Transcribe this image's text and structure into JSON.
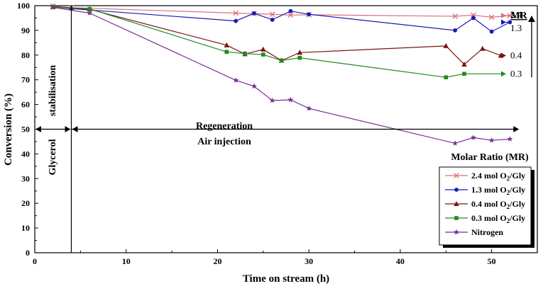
{
  "chart_data": {
    "type": "line",
    "xlabel": "Time on stream (h)",
    "ylabel": "Conversion (%)",
    "xlim": [
      0,
      55
    ],
    "ylim": [
      0,
      100
    ],
    "xticks": [
      0,
      10,
      20,
      30,
      40,
      50
    ],
    "yticks": [
      0,
      10,
      20,
      30,
      40,
      50,
      60,
      70,
      80,
      90,
      100
    ],
    "grid": false,
    "legend_title": "Molar Ratio (MR)",
    "legend_position": "bottom-right",
    "series": [
      {
        "name": "2.4 mol O2/Gly",
        "legend_main": "2.4 mol O",
        "legend_sub": "2",
        "legend_tail": "/Gly",
        "color": "#d9707a",
        "marker": "x",
        "end_label": "2.4",
        "x": [
          2,
          4,
          22,
          24,
          26,
          28,
          30,
          46,
          48,
          50,
          52
        ],
        "y": [
          99.8,
          99.2,
          97.0,
          96.8,
          96.5,
          96.2,
          96.3,
          95.7,
          96.2,
          95.3,
          96.0
        ]
      },
      {
        "name": "1.3 mol O2/Gly",
        "legend_main": "1.3 mol O",
        "legend_sub": "2",
        "legend_tail": "/Gly",
        "color": "#1a1ab8",
        "marker": "circle",
        "end_label": "1.3",
        "x": [
          2,
          4,
          22,
          24,
          26,
          28,
          30,
          46,
          48,
          50,
          52
        ],
        "y": [
          99.6,
          98.8,
          93.8,
          96.9,
          94.3,
          97.8,
          96.5,
          90.0,
          95.0,
          89.5,
          93.3
        ]
      },
      {
        "name": "0.4 mol O2/Gly",
        "legend_main": "0.4 mol O",
        "legend_sub": "2",
        "legend_tail": "/Gly",
        "color": "#7a1414",
        "marker": "triangle",
        "end_label": "0.4",
        "x": [
          2,
          6,
          21,
          23,
          25,
          27,
          29,
          45,
          47,
          49,
          51
        ],
        "y": [
          99.5,
          98.5,
          84.0,
          80.4,
          82.3,
          77.8,
          81.0,
          83.7,
          76.2,
          82.6,
          79.8
        ]
      },
      {
        "name": "0.3 mol O2/Gly",
        "legend_main": "0.3 mol O",
        "legend_sub": "2",
        "legend_tail": "/Gly",
        "color": "#208a20",
        "marker": "square",
        "end_label": "0.3",
        "x": [
          2,
          6,
          21,
          23,
          25,
          27,
          29,
          45,
          47
        ],
        "y": [
          99.6,
          98.7,
          81.3,
          80.6,
          80.2,
          77.8,
          78.9,
          71.0,
          72.4
        ]
      },
      {
        "name": "Nitrogen",
        "legend_main": "Nitrogen",
        "legend_sub": "",
        "legend_tail": "",
        "color": "#7a2e90",
        "marker": "star",
        "end_label": "",
        "x": [
          2,
          6,
          22,
          24,
          26,
          28,
          30,
          46,
          48,
          50,
          52
        ],
        "y": [
          99.3,
          97.0,
          69.8,
          67.4,
          61.6,
          61.9,
          58.4,
          44.3,
          46.6,
          45.5,
          46.0
        ]
      }
    ],
    "annotations": {
      "phase_left": "Glycerol",
      "phase_left_2": "stabilisation",
      "phase_right": "Regeneration",
      "phase_right_2": "Air injection",
      "mr_header": "MR",
      "phase_divider_x": 4,
      "phase_arrow_y": 50
    }
  }
}
